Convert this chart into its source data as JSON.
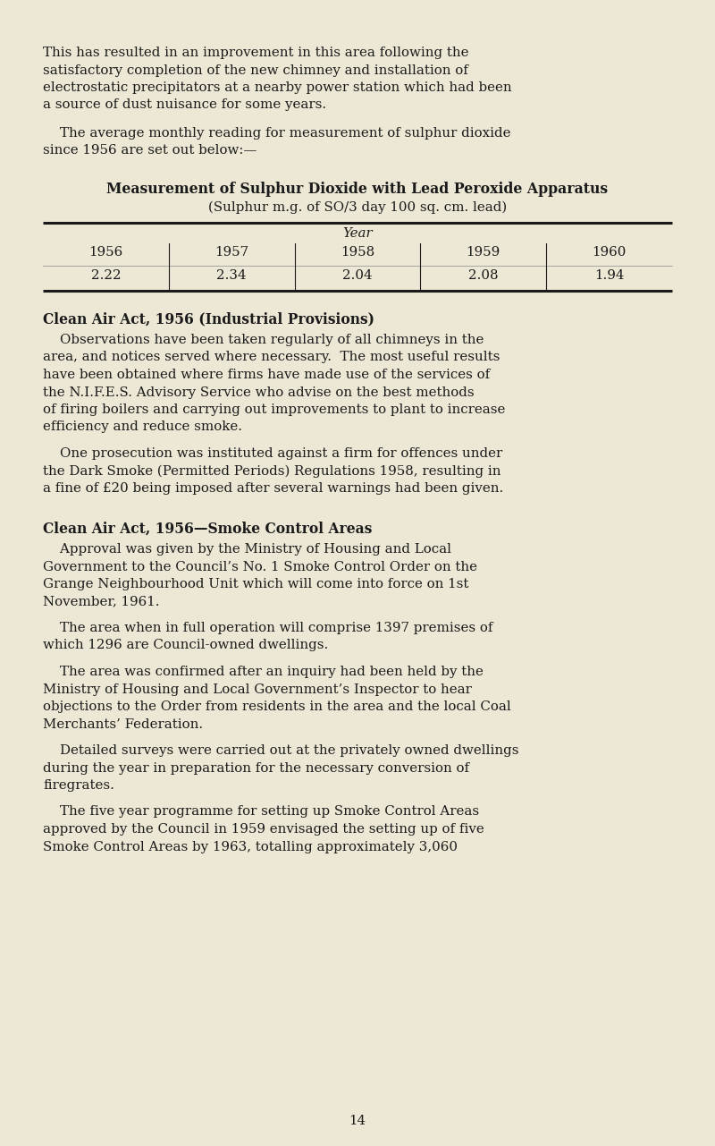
{
  "bg_color": "#ede8d5",
  "text_color": "#1a1a1a",
  "paragraph1_lines": [
    "This has resulted in an improvement in this area following the",
    "satisfactory completion of the new chimney and installation of",
    "electrostatic precipitators at a nearby power station which had been",
    "a source of dust nuisance for some years."
  ],
  "paragraph2_lines": [
    "    The average monthly reading for measurement of sulphur dioxide",
    "since 1956 are set out below:—"
  ],
  "table_title_bold": "Measurement of Sulphur Dioxide with Lead Peroxide Apparatus",
  "table_subtitle": "(Sulphur m.g. of SO/3 day 100 sq. cm. lead)",
  "table_header": "Year",
  "table_years": [
    "1956",
    "1957",
    "1958",
    "1959",
    "1960"
  ],
  "table_values": [
    "2.22",
    "2.34",
    "2.04",
    "2.08",
    "1.94"
  ],
  "section1_heading": "Clean Air Act, 1956 (Industrial Provisions)",
  "section1_para1_lines": [
    "    Observations have been taken regularly of all chimneys in the",
    "area, and notices served where necessary.  The most useful results",
    "have been obtained where firms have made use of the services of",
    "the N.I.F.E.S. Advisory Service who advise on the best methods",
    "of firing boilers and carrying out improvements to plant to increase",
    "efficiency and reduce smoke."
  ],
  "section1_para2_lines": [
    "    One prosecution was instituted against a firm for offences under",
    "the Dark Smoke (Permitted Periods) Regulations 1958, resulting in",
    "a fine of £20 being imposed after several warnings had been given."
  ],
  "section2_heading": "Clean Air Act, 1956—Smoke Control Areas",
  "section2_para1_lines": [
    "    Approval was given by the Ministry of Housing and Local",
    "Government to the Council’s No. 1 Smoke Control Order on the",
    "Grange Neighbourhood Unit which will come into force on 1st",
    "November, 1961."
  ],
  "section2_para2_lines": [
    "    The area when in full operation will comprise 1397 premises of",
    "which 1296 are Council-owned dwellings."
  ],
  "section2_para3_lines": [
    "    The area was confirmed after an inquiry had been held by the",
    "Ministry of Housing and Local Government’s Inspector to hear",
    "objections to the Order from residents in the area and the local Coal",
    "Merchants’ Federation."
  ],
  "section2_para4_lines": [
    "    Detailed surveys were carried out at the privately owned dwellings",
    "during the year in preparation for the necessary conversion of",
    "firegrates."
  ],
  "section2_para5_lines": [
    "    The five year programme for setting up Smoke Control Areas",
    "approved by the Council in 1959 envisaged the setting up of five",
    "Smoke Control Areas by 1963, totalling approximately 3,060"
  ],
  "page_number": "14"
}
